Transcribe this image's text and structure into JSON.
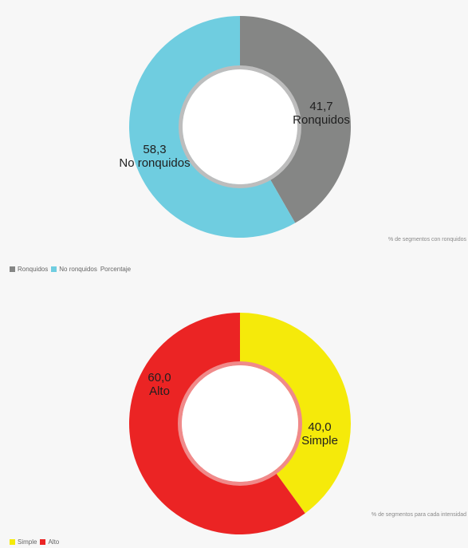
{
  "chart_data": [
    {
      "type": "pie",
      "categories": [
        "Ronquidos",
        "No ronquidos"
      ],
      "values": [
        41.7,
        58.3
      ],
      "display_values": [
        "41,7",
        "58,3"
      ],
      "colors": [
        "#858685",
        "#6fcde0"
      ],
      "caption": "% de segmentos con ronquidos",
      "legend": [
        {
          "label": "Ronquidos",
          "color": "#858685"
        },
        {
          "label": "No ronquidos",
          "color": "#6fcde0"
        }
      ],
      "legend_suffix": "Porcentaje",
      "legend_position": "bottom-left"
    },
    {
      "type": "pie",
      "categories": [
        "Simple",
        "Alto"
      ],
      "values": [
        40.0,
        60.0
      ],
      "display_values": [
        "40,0",
        "60,0"
      ],
      "colors": [
        "#f5ea0a",
        "#eb2424"
      ],
      "caption": "% de segmentos para cada intensidad",
      "legend": [
        {
          "label": "Simple",
          "color": "#f5ea0a"
        },
        {
          "label": "Alto",
          "color": "#eb2424"
        }
      ],
      "legend_suffix": "",
      "legend_position": "bottom-left"
    }
  ]
}
